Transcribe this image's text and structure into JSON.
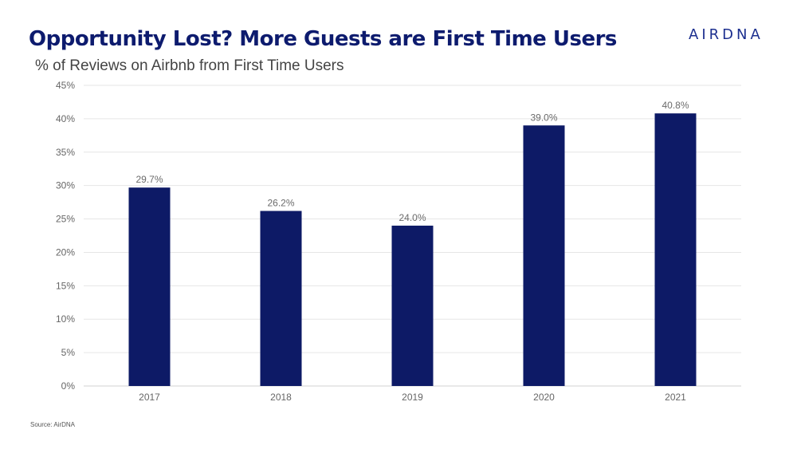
{
  "header": {
    "title": "Opportunity Lost?  More Guests are First Time Users",
    "brand": "AIRDNA"
  },
  "footer": {
    "source": "Source: AirDNA"
  },
  "chart_data": {
    "type": "bar",
    "title": "Opportunity Lost?  More Guests are First Time Users",
    "subtitle": "% of Reviews on Airbnb from First Time Users",
    "xlabel": "",
    "ylabel": "",
    "categories": [
      "2017",
      "2018",
      "2019",
      "2020",
      "2021"
    ],
    "values": [
      29.7,
      26.2,
      24.0,
      39.0,
      40.8
    ],
    "value_labels": [
      "29.7%",
      "26.2%",
      "24.0%",
      "39.0%",
      "40.8%"
    ],
    "ylim": [
      0,
      45
    ],
    "yticks": [
      0,
      5,
      10,
      15,
      20,
      25,
      30,
      35,
      40,
      45
    ],
    "ytick_labels": [
      "0%",
      "5%",
      "10%",
      "15%",
      "20%",
      "25%",
      "30%",
      "35%",
      "40%",
      "45%"
    ],
    "grid": true,
    "legend": "none",
    "bar_color": "#0d1a66"
  }
}
